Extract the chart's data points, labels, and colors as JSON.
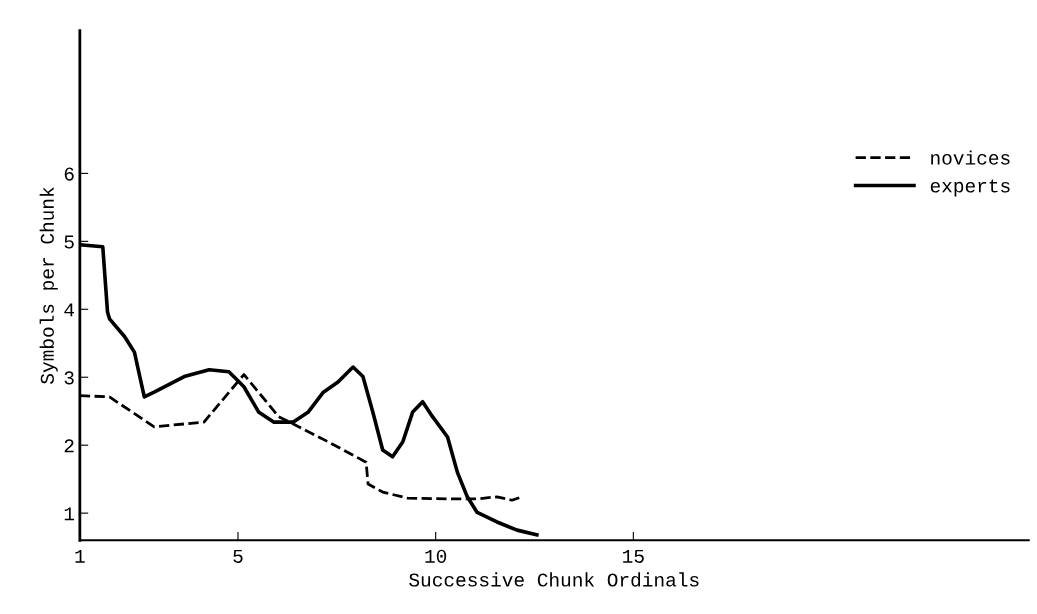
{
  "chart_data": {
    "type": "line",
    "xlabel": "Successive Chunk Ordinals",
    "ylabel": "Symbols per Chunk",
    "xlim": [
      1,
      25
    ],
    "ylim": [
      0.6,
      8.1
    ],
    "xticks": [
      1,
      5,
      10,
      15
    ],
    "yticks": [
      1,
      2,
      3,
      4,
      5,
      6
    ],
    "grid": false,
    "legend": "right",
    "marker": "none",
    "series": [
      {
        "name": "novices",
        "color": "#000000",
        "line_style": "dashed",
        "x": [
          1.0,
          1.75,
          2.88,
          4.14,
          5.15,
          6.03,
          7.28,
          8.24,
          8.29,
          8.66,
          9.29,
          10.3,
          11.05,
          11.55,
          11.93,
          12.18
        ],
        "values": [
          2.73,
          2.71,
          2.27,
          2.34,
          3.04,
          2.42,
          2.05,
          1.75,
          1.43,
          1.31,
          1.22,
          1.21,
          1.21,
          1.24,
          1.19,
          1.24
        ]
      },
      {
        "name": "experts",
        "color": "#000000",
        "line_style": "solid",
        "x": [
          1.0,
          1.58,
          1.7,
          1.75,
          2.13,
          2.38,
          2.63,
          2.88,
          3.64,
          4.27,
          4.77,
          5.15,
          5.52,
          5.9,
          6.4,
          6.78,
          7.16,
          7.53,
          7.91,
          8.16,
          8.41,
          8.66,
          8.91,
          9.17,
          9.42,
          9.67,
          9.92,
          10.3,
          10.55,
          10.8,
          11.05,
          11.55,
          12.06,
          12.56
        ],
        "values": [
          4.95,
          4.92,
          3.96,
          3.86,
          3.6,
          3.37,
          2.71,
          2.78,
          3.01,
          3.11,
          3.08,
          2.86,
          2.49,
          2.34,
          2.34,
          2.49,
          2.78,
          2.93,
          3.15,
          3.01,
          2.49,
          1.93,
          1.83,
          2.05,
          2.49,
          2.64,
          2.42,
          2.12,
          1.6,
          1.24,
          1.01,
          0.87,
          0.75,
          0.68
        ]
      }
    ]
  }
}
